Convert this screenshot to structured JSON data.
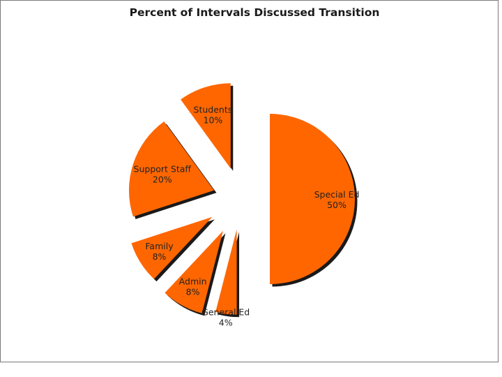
{
  "chart_data": {
    "type": "pie",
    "title": "Percent of Intervals Discussed Transition",
    "exploded": true,
    "slices": [
      {
        "label": "Special Ed",
        "pct_label": "50%",
        "value": 50
      },
      {
        "label": "General Ed",
        "pct_label": "4%",
        "value": 4
      },
      {
        "label": "Admin",
        "pct_label": "8%",
        "value": 8
      },
      {
        "label": "Family",
        "pct_label": "8%",
        "value": 8
      },
      {
        "label": "Support Staff",
        "pct_label": "20%",
        "value": 20
      },
      {
        "label": "Students",
        "pct_label": "10%",
        "value": 10
      }
    ],
    "slice_color": "#ff6600",
    "shadow_color": "#1a1a1a",
    "legend": "none"
  }
}
